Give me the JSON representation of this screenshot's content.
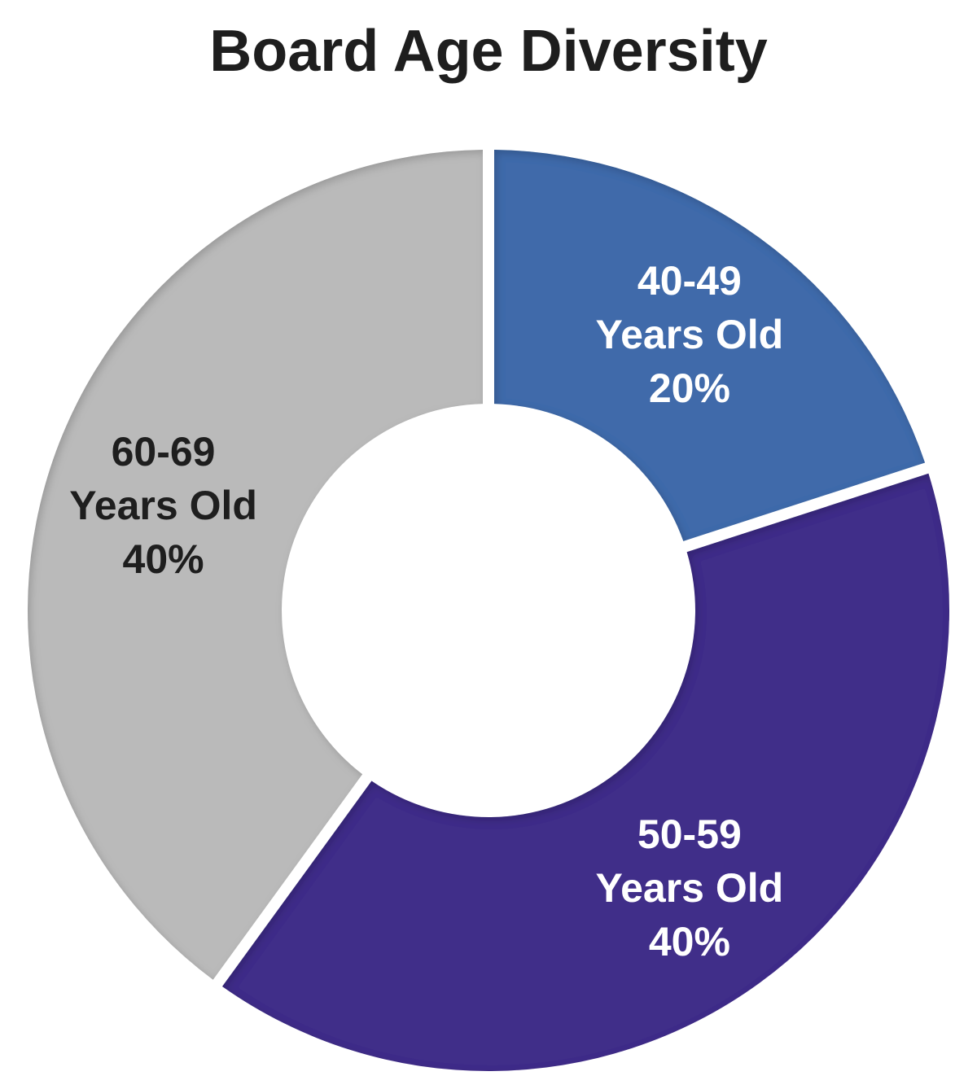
{
  "chart_data": {
    "type": "pie",
    "title": "Board Age Diversity",
    "donut": true,
    "categories": [
      "40-49",
      "50-59",
      "60-69"
    ],
    "values": [
      20,
      40,
      40
    ],
    "slices": [
      {
        "label": "40-49",
        "label_line2": "Years Old",
        "value_label": "20%",
        "value": 20,
        "color": "#3f6aaa",
        "text_color": "#ffffff"
      },
      {
        "label": "50-59",
        "label_line2": "Years Old",
        "value_label": "40%",
        "value": 40,
        "color": "#412f89",
        "text_color": "#ffffff"
      },
      {
        "label": "60-69",
        "label_line2": "Years Old",
        "value_label": "40%",
        "value": 40,
        "color": "#bababa",
        "text_color": "#1e1e1e"
      }
    ]
  }
}
